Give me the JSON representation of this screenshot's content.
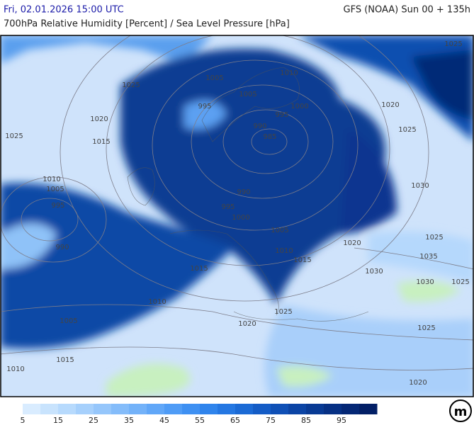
{
  "header": {
    "date": "Fri, 02.01.2026 15:00 UTC",
    "model": "GFS (NOAA) Sun 00 + 135h",
    "subtitle": "700hPa Relative Humidity [Percent] / Sea Level Pressure [hPa]"
  },
  "map": {
    "isobar_labels": [
      "1025",
      "1025",
      "1005",
      "1010",
      "1005",
      "1020",
      "995",
      "995",
      "1000",
      "1020",
      "990",
      "1025",
      "1025",
      "985",
      "1015",
      "1010",
      "1005",
      "990",
      "1030",
      "995",
      "995",
      "1000",
      "1005",
      "1020",
      "990",
      "1010",
      "1025",
      "1035",
      "1015",
      "1015",
      "1030",
      "1030",
      "1025",
      "1010",
      "1025",
      "1005",
      "1020",
      "1025",
      "1015",
      "1010",
      "1020"
    ]
  },
  "colorbar": {
    "labels": [
      5,
      15,
      25,
      35,
      45,
      55,
      65,
      75,
      85,
      95
    ],
    "colors": [
      "#d9ecff",
      "#c8e3fd",
      "#b7dafd",
      "#a6d0fc",
      "#95c6fb",
      "#84bcfa",
      "#73b2f9",
      "#61a7f8",
      "#4f9cf6",
      "#3e90f2",
      "#2f84ec",
      "#2477e2",
      "#1b6ad5",
      "#145cc6",
      "#0f50b6",
      "#0b44a5",
      "#083a94",
      "#063084",
      "#042775",
      "#021f66"
    ]
  },
  "logo": "m"
}
